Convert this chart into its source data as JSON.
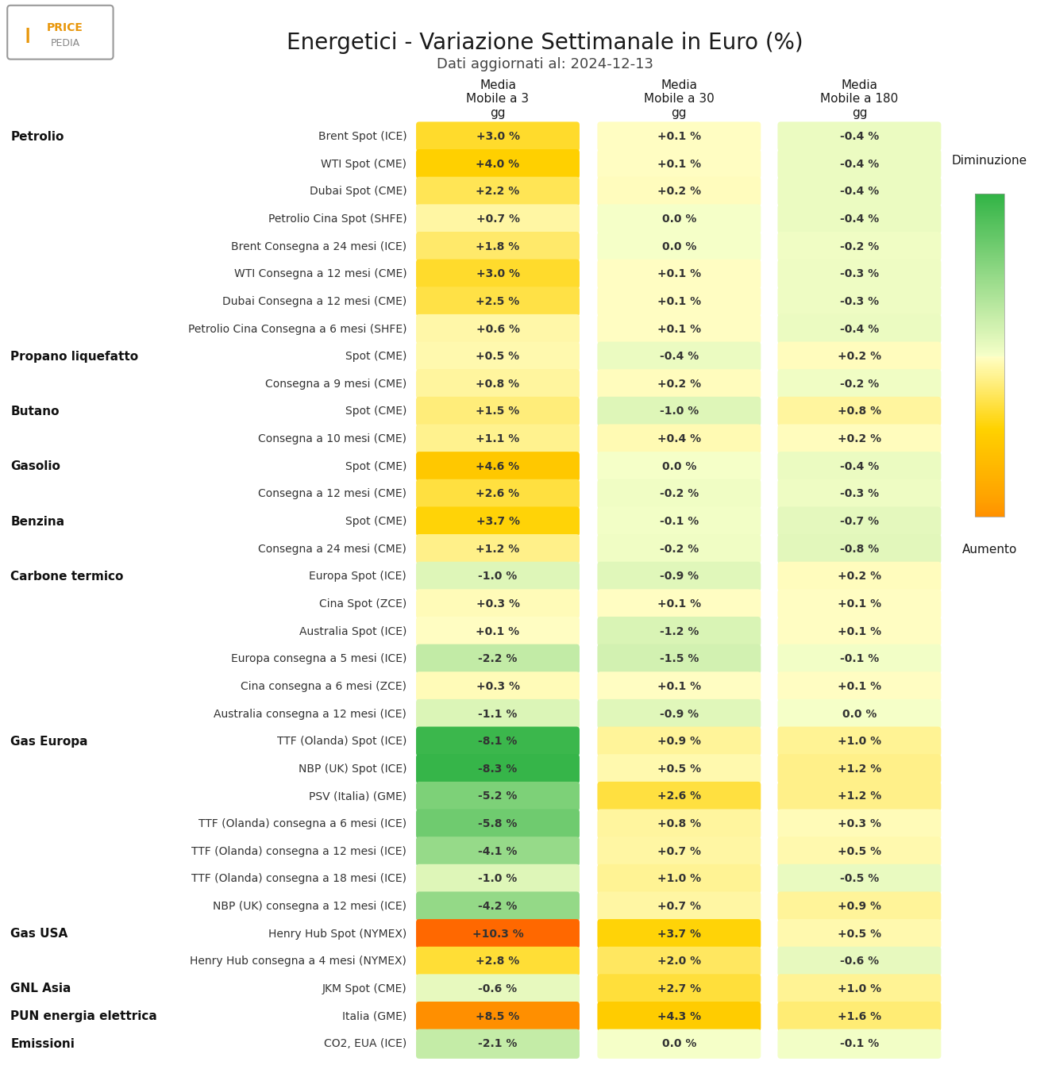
{
  "title": "Energetici - Variazione Settimanale in Euro (%)",
  "subtitle": "Dati aggiornati al: 2024-12-13",
  "col_headers": [
    "Media\nMobile a 3\ngg",
    "Media\nMobile a 30\ngg",
    "Media\nMobile a 180\ngg"
  ],
  "legend_top": "Diminuzione",
  "legend_bottom": "Aumento",
  "rows": [
    {
      "category": "Petrolio",
      "label": "Brent Spot (ICE)",
      "values": [
        3.0,
        0.1,
        -0.4
      ]
    },
    {
      "category": "",
      "label": "WTI Spot (CME)",
      "values": [
        4.0,
        0.1,
        -0.4
      ]
    },
    {
      "category": "",
      "label": "Dubai Spot (CME)",
      "values": [
        2.2,
        0.2,
        -0.4
      ]
    },
    {
      "category": "",
      "label": "Petrolio Cina Spot (SHFE)",
      "values": [
        0.7,
        0.0,
        -0.4
      ]
    },
    {
      "category": "",
      "label": "Brent Consegna a 24 mesi (ICE)",
      "values": [
        1.8,
        0.0,
        -0.2
      ]
    },
    {
      "category": "",
      "label": "WTI Consegna a 12 mesi (CME)",
      "values": [
        3.0,
        0.1,
        -0.3
      ]
    },
    {
      "category": "",
      "label": "Dubai Consegna a 12 mesi (CME)",
      "values": [
        2.5,
        0.1,
        -0.3
      ]
    },
    {
      "category": "",
      "label": "Petrolio Cina Consegna a 6 mesi (SHFE)",
      "values": [
        0.6,
        0.1,
        -0.4
      ]
    },
    {
      "category": "Propano liquefatto",
      "label": "Spot (CME)",
      "values": [
        0.5,
        -0.4,
        0.2
      ]
    },
    {
      "category": "",
      "label": "Consegna a 9 mesi (CME)",
      "values": [
        0.8,
        0.2,
        -0.2
      ]
    },
    {
      "category": "Butano",
      "label": "Spot (CME)",
      "values": [
        1.5,
        -1.0,
        0.8
      ]
    },
    {
      "category": "",
      "label": "Consegna a 10 mesi (CME)",
      "values": [
        1.1,
        0.4,
        0.2
      ]
    },
    {
      "category": "Gasolio",
      "label": "Spot (CME)",
      "values": [
        4.6,
        0.0,
        -0.4
      ]
    },
    {
      "category": "",
      "label": "Consegna a 12 mesi (CME)",
      "values": [
        2.6,
        -0.2,
        -0.3
      ]
    },
    {
      "category": "Benzina",
      "label": "Spot (CME)",
      "values": [
        3.7,
        -0.1,
        -0.7
      ]
    },
    {
      "category": "",
      "label": "Consegna a 24 mesi (CME)",
      "values": [
        1.2,
        -0.2,
        -0.8
      ]
    },
    {
      "category": "Carbone termico",
      "label": "Europa Spot (ICE)",
      "values": [
        -1.0,
        -0.9,
        0.2
      ]
    },
    {
      "category": "",
      "label": "Cina Spot (ZCE)",
      "values": [
        0.3,
        0.1,
        0.1
      ]
    },
    {
      "category": "",
      "label": "Australia Spot (ICE)",
      "values": [
        0.1,
        -1.2,
        0.1
      ]
    },
    {
      "category": "",
      "label": "Europa consegna a 5 mesi (ICE)",
      "values": [
        -2.2,
        -1.5,
        -0.1
      ]
    },
    {
      "category": "",
      "label": "Cina consegna a 6 mesi (ZCE)",
      "values": [
        0.3,
        0.1,
        0.1
      ]
    },
    {
      "category": "",
      "label": "Australia consegna a 12 mesi (ICE)",
      "values": [
        -1.1,
        -0.9,
        0.0
      ]
    },
    {
      "category": "Gas Europa",
      "label": "TTF (Olanda) Spot (ICE)",
      "values": [
        -8.1,
        0.9,
        1.0
      ]
    },
    {
      "category": "",
      "label": "NBP (UK) Spot (ICE)",
      "values": [
        -8.3,
        0.5,
        1.2
      ]
    },
    {
      "category": "",
      "label": "PSV (Italia) (GME)",
      "values": [
        -5.2,
        2.6,
        1.2
      ]
    },
    {
      "category": "",
      "label": "TTF (Olanda) consegna a 6 mesi (ICE)",
      "values": [
        -5.8,
        0.8,
        0.3
      ]
    },
    {
      "category": "",
      "label": "TTF (Olanda) consegna a 12 mesi (ICE)",
      "values": [
        -4.1,
        0.7,
        0.5
      ]
    },
    {
      "category": "",
      "label": "TTF (Olanda) consegna a 18 mesi (ICE)",
      "values": [
        -1.0,
        1.0,
        -0.5
      ]
    },
    {
      "category": "",
      "label": "NBP (UK) consegna a 12 mesi (ICE)",
      "values": [
        -4.2,
        0.7,
        0.9
      ]
    },
    {
      "category": "Gas USA",
      "label": "Henry Hub Spot (NYMEX)",
      "values": [
        10.3,
        3.7,
        0.5
      ]
    },
    {
      "category": "",
      "label": "Henry Hub consegna a 4 mesi (NYMEX)",
      "values": [
        2.8,
        2.0,
        -0.6
      ]
    },
    {
      "category": "GNL Asia",
      "label": "JKM Spot (CME)",
      "values": [
        -0.6,
        2.7,
        1.0
      ]
    },
    {
      "category": "PUN energia elettrica",
      "label": "Italia (GME)",
      "values": [
        8.5,
        4.3,
        1.6
      ]
    },
    {
      "category": "Emissioni",
      "label": "CO2, EUA (ICE)",
      "values": [
        -2.1,
        0.0,
        -0.1
      ]
    }
  ],
  "background_color": "#ffffff",
  "fig_width": 13.2,
  "fig_height": 13.57,
  "title_fontsize": 20,
  "subtitle_fontsize": 13,
  "header_fontsize": 11,
  "label_fontsize": 10,
  "cell_fontsize": 10,
  "category_fontsize": 11,
  "logo_text1": "PRICE",
  "logo_text2": "PEDIA"
}
